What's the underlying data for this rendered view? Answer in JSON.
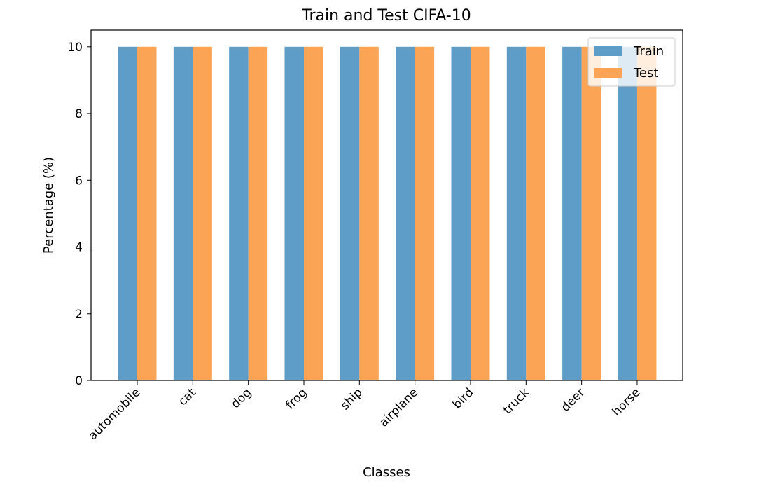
{
  "chart_data": {
    "type": "bar",
    "title": "Train and Test CIFA-10",
    "xlabel": "Classes",
    "ylabel": "Percentage (%)",
    "categories": [
      "automobile",
      "cat",
      "dog",
      "frog",
      "ship",
      "airplane",
      "bird",
      "truck",
      "deer",
      "horse"
    ],
    "series": [
      {
        "name": "Train",
        "values": [
          10,
          10,
          10,
          10,
          10,
          10,
          10,
          10,
          10,
          10
        ],
        "color": "#5f9dc9"
      },
      {
        "name": "Test",
        "values": [
          10,
          10,
          10,
          10,
          10,
          10,
          10,
          10,
          10,
          10
        ],
        "color": "#fca456"
      }
    ],
    "ylim": [
      0,
      10.5
    ],
    "yticks": [
      0,
      2,
      4,
      6,
      8,
      10
    ],
    "grid": false,
    "legend_position": "top-right"
  }
}
